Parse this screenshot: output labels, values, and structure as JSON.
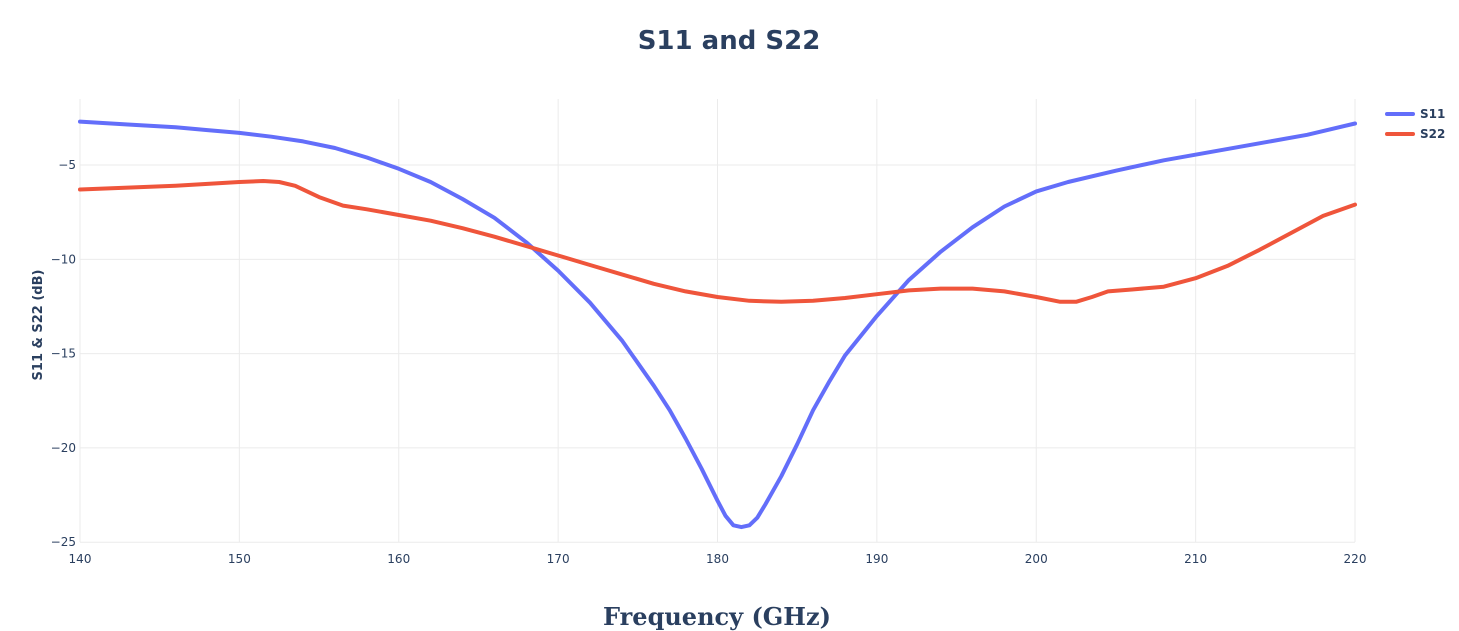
{
  "chart_data": {
    "type": "line",
    "title": "S11 and S22",
    "xlabel": "Frequency (GHz)",
    "ylabel": "S11 & S22 (dB)",
    "xlim": [
      140,
      220
    ],
    "ylim": [
      -25.2,
      -1.5
    ],
    "xticks": [
      140,
      150,
      160,
      170,
      180,
      190,
      200,
      210,
      220
    ],
    "yticks": [
      -25,
      -20,
      -15,
      -10,
      -5
    ],
    "ytick_labels": [
      "−25",
      "−20",
      "−15",
      "−10",
      "−5"
    ],
    "grid": true,
    "legend_position": "top-right",
    "series": [
      {
        "name": "S11",
        "color": "#636efa",
        "points": [
          [
            140,
            -2.7
          ],
          [
            143,
            -2.85
          ],
          [
            146,
            -3.0
          ],
          [
            148,
            -3.15
          ],
          [
            150,
            -3.3
          ],
          [
            152,
            -3.5
          ],
          [
            154,
            -3.75
          ],
          [
            156,
            -4.1
          ],
          [
            158,
            -4.6
          ],
          [
            160,
            -5.2
          ],
          [
            162,
            -5.9
          ],
          [
            164,
            -6.8
          ],
          [
            166,
            -7.8
          ],
          [
            168,
            -9.1
          ],
          [
            170,
            -10.6
          ],
          [
            172,
            -12.3
          ],
          [
            174,
            -14.3
          ],
          [
            176,
            -16.7
          ],
          [
            177,
            -18.0
          ],
          [
            178,
            -19.5
          ],
          [
            179,
            -21.1
          ],
          [
            180,
            -22.8
          ],
          [
            180.5,
            -23.6
          ],
          [
            181,
            -24.1
          ],
          [
            181.5,
            -24.2
          ],
          [
            182,
            -24.1
          ],
          [
            182.5,
            -23.7
          ],
          [
            183,
            -23.0
          ],
          [
            184,
            -21.5
          ],
          [
            185,
            -19.8
          ],
          [
            186,
            -18.0
          ],
          [
            187,
            -16.5
          ],
          [
            188,
            -15.1
          ],
          [
            190,
            -13.0
          ],
          [
            192,
            -11.1
          ],
          [
            194,
            -9.6
          ],
          [
            196,
            -8.3
          ],
          [
            198,
            -7.2
          ],
          [
            200,
            -6.4
          ],
          [
            202,
            -5.9
          ],
          [
            205,
            -5.3
          ],
          [
            208,
            -4.75
          ],
          [
            211,
            -4.3
          ],
          [
            214,
            -3.85
          ],
          [
            217,
            -3.4
          ],
          [
            220,
            -2.8
          ]
        ]
      },
      {
        "name": "S22",
        "color": "#ef553b",
        "points": [
          [
            140,
            -6.3
          ],
          [
            143,
            -6.2
          ],
          [
            146,
            -6.1
          ],
          [
            148,
            -6.0
          ],
          [
            150,
            -5.9
          ],
          [
            151.5,
            -5.85
          ],
          [
            152.5,
            -5.9
          ],
          [
            153.5,
            -6.1
          ],
          [
            155,
            -6.7
          ],
          [
            156.5,
            -7.15
          ],
          [
            158,
            -7.35
          ],
          [
            160,
            -7.65
          ],
          [
            162,
            -7.95
          ],
          [
            164,
            -8.35
          ],
          [
            166,
            -8.8
          ],
          [
            168,
            -9.3
          ],
          [
            170,
            -9.8
          ],
          [
            172,
            -10.3
          ],
          [
            174,
            -10.8
          ],
          [
            176,
            -11.3
          ],
          [
            178,
            -11.7
          ],
          [
            180,
            -12.0
          ],
          [
            182,
            -12.2
          ],
          [
            184,
            -12.25
          ],
          [
            186,
            -12.2
          ],
          [
            188,
            -12.05
          ],
          [
            190,
            -11.85
          ],
          [
            192,
            -11.65
          ],
          [
            194,
            -11.55
          ],
          [
            196,
            -11.55
          ],
          [
            198,
            -11.7
          ],
          [
            200,
            -12.0
          ],
          [
            201.5,
            -12.25
          ],
          [
            202.5,
            -12.25
          ],
          [
            203.5,
            -12.0
          ],
          [
            204.5,
            -11.7
          ],
          [
            206,
            -11.6
          ],
          [
            208,
            -11.45
          ],
          [
            210,
            -11.0
          ],
          [
            212,
            -10.35
          ],
          [
            214,
            -9.5
          ],
          [
            216,
            -8.6
          ],
          [
            218,
            -7.7
          ],
          [
            220,
            -7.1
          ]
        ]
      }
    ]
  }
}
